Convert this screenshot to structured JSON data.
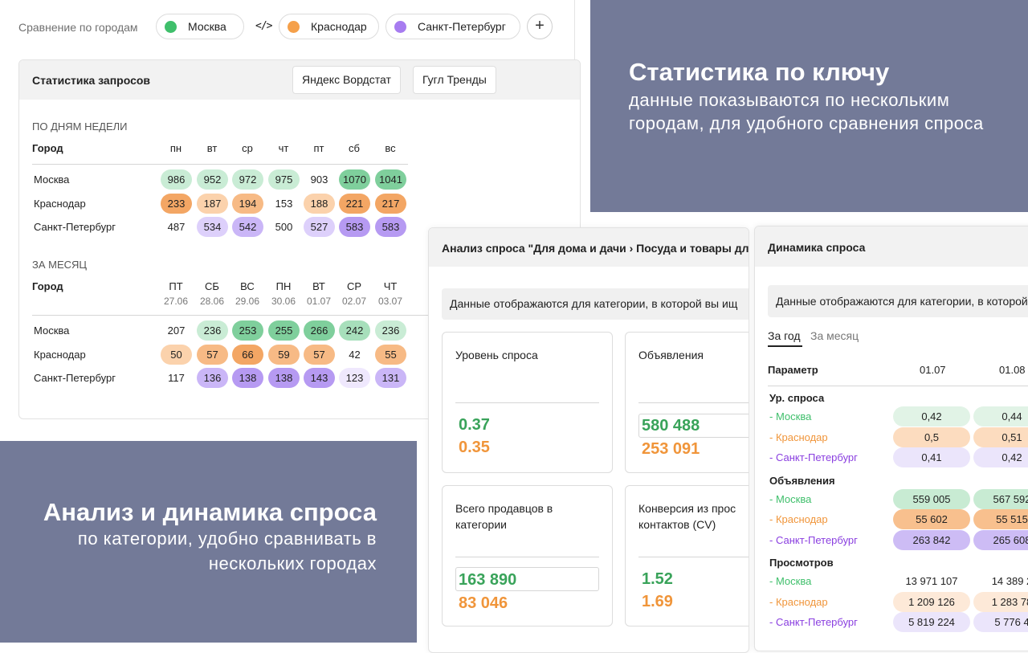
{
  "filters": {
    "label": "Сравнение по городам",
    "cities": [
      {
        "name": "Москва",
        "color": "#3fbf6b"
      },
      {
        "name": "Краснодар",
        "color": "#f5a04a"
      },
      {
        "name": "Санкт-Петербург",
        "color": "#a77cf0"
      }
    ],
    "swap_icon": "</>",
    "add": "+"
  },
  "stats": {
    "title": "Статистика запросов",
    "tabs": [
      "Яндекс Вордстат",
      "Гугл Тренды"
    ],
    "weekly": {
      "section": "ПО ДНЯМ НЕДЕЛИ",
      "city_header": "Город",
      "days": [
        "пн",
        "вт",
        "ср",
        "чт",
        "пт",
        "сб",
        "вс"
      ],
      "rows": [
        {
          "city": "Москва",
          "values": [
            "986",
            "952",
            "972",
            "975",
            "903",
            "1070",
            "1041"
          ]
        },
        {
          "city": "Краснодар",
          "values": [
            "233",
            "187",
            "194",
            "153",
            "188",
            "221",
            "217"
          ]
        },
        {
          "city": "Санкт-Петербург",
          "values": [
            "487",
            "534",
            "542",
            "500",
            "527",
            "583",
            "583"
          ]
        }
      ]
    },
    "monthly": {
      "section": "ЗА МЕСЯЦ",
      "city_header": "Город",
      "days": [
        {
          "d": "ПТ",
          "date": "27.06"
        },
        {
          "d": "СБ",
          "date": "28.06"
        },
        {
          "d": "ВС",
          "date": "29.06"
        },
        {
          "d": "ПН",
          "date": "30.06"
        },
        {
          "d": "ВТ",
          "date": "01.07"
        },
        {
          "d": "СР",
          "date": "02.07"
        },
        {
          "d": "ЧТ",
          "date": "03.07"
        }
      ],
      "rows": [
        {
          "city": "Москва",
          "values": [
            "207",
            "236",
            "253",
            "255",
            "266",
            "242",
            "236"
          ]
        },
        {
          "city": "Краснодар",
          "values": [
            "50",
            "57",
            "66",
            "59",
            "57",
            "42",
            "55"
          ]
        },
        {
          "city": "Санкт-Петербург",
          "values": [
            "117",
            "136",
            "138",
            "138",
            "143",
            "123",
            "131"
          ]
        }
      ]
    }
  },
  "promo_top": {
    "heading": "Статистика по ключу",
    "text": "данные показываются по нескольким городам, для удобного сравнения спроса"
  },
  "promo_bottom": {
    "heading": "Анализ и динамика спроса",
    "text": "по категории, удобно сравнивать в нескольких городах"
  },
  "analysis": {
    "title": "Анализ спроса \"Для дома и дачи › Посуда и товары для",
    "notice": "Данные отображаются для категории, в которой вы ищ",
    "cards": [
      {
        "label": "Уровень спроса",
        "v1": "0.37",
        "v2": "0.35"
      },
      {
        "label": "Объявления",
        "v1": "580 488",
        "v2": "253 091"
      },
      {
        "label": "Всего продавцов в категории",
        "v1": "163 890",
        "v2": "83 046"
      },
      {
        "label": "Конверсия из просмотров в контакты (CV)",
        "label_visible": "Конверсия из прос контактов (CV)",
        "v1": "1.52",
        "v2": "1.69"
      }
    ]
  },
  "dynamics": {
    "title": "Динамика спроса",
    "notice": "Данные отображаются для категории, в которой",
    "tabs": [
      "За год",
      "За месяц"
    ],
    "param_header": "Параметр",
    "dates": [
      "01.07",
      "01.08"
    ],
    "groups": [
      {
        "name": "Ур. спроса",
        "rows": [
          {
            "city": "- Москва",
            "v": [
              "0,42",
              "0,44"
            ]
          },
          {
            "city": "- Краснодар",
            "v": [
              "0,5",
              "0,51"
            ]
          },
          {
            "city": "- Санкт-Петербург",
            "v": [
              "0,41",
              "0,42"
            ]
          }
        ]
      },
      {
        "name": "Объявления",
        "rows": [
          {
            "city": "- Москва",
            "v": [
              "559 005",
              "567 592"
            ]
          },
          {
            "city": "- Краснодар",
            "v": [
              "55 602",
              "55 515"
            ]
          },
          {
            "city": "- Санкт-Петербург",
            "v": [
              "263 842",
              "265 608"
            ]
          }
        ]
      },
      {
        "name": "Просмотров",
        "rows": [
          {
            "city": "- Москва",
            "v": [
              "13 971 107",
              "14 389 2"
            ]
          },
          {
            "city": "- Краснодар",
            "v": [
              "1 209 126",
              "1 283 78"
            ]
          },
          {
            "city": "- Санкт-Петербург",
            "v": [
              "5 819 224",
              "5 776 4"
            ]
          }
        ]
      }
    ]
  },
  "colors": {
    "moscow": "#3fbf6b",
    "krasnodar": "#f0953a",
    "spb": "#8a3fe0",
    "promo_bg": "#737a98"
  }
}
